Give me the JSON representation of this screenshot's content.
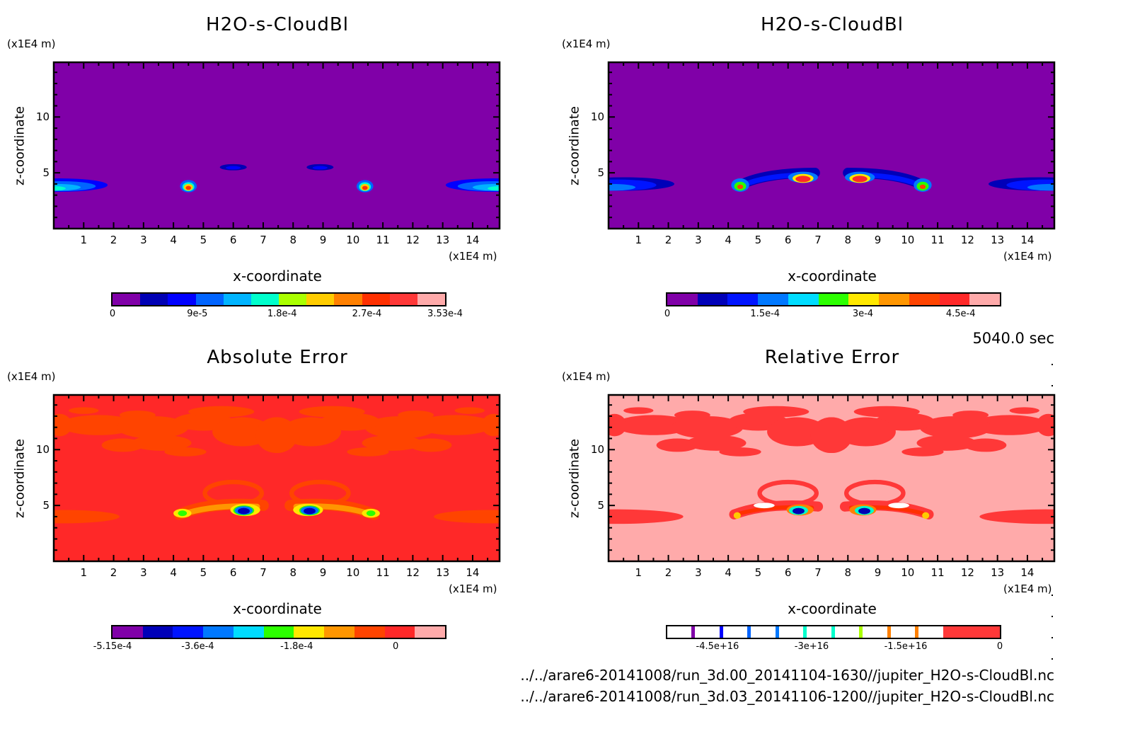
{
  "time_label": "5040.0 sec",
  "file_paths": [
    "../../arare6-20141008/run_3d.00_20141104-1630//jupiter_H2O-s-CloudBl.nc",
    "../../arare6-20141008/run_3d.03_20141106-1200//jupiter_H2O-s-CloudBl.nc"
  ],
  "chart_data": [
    {
      "type": "heatmap",
      "title": "H2O-s-CloudBl",
      "xlabel": "x-coordinate",
      "ylabel": "z-coordinate",
      "x_unit": "(x1E4 m)",
      "z_unit": "(x1E4 m)",
      "xlim": [
        0,
        14.9
      ],
      "zlim": [
        0,
        14.9
      ],
      "xticks": [
        "1",
        "2",
        "3",
        "4",
        "5",
        "6",
        "7",
        "8",
        "9",
        "10",
        "11",
        "12",
        "13",
        "14"
      ],
      "zticks": [
        "5",
        "10"
      ],
      "background": "#8000a8",
      "colorbar": {
        "colors": [
          "#8000a8",
          "#0000b4",
          "#0000ff",
          "#0064ff",
          "#00b4ff",
          "#00ffcc",
          "#aaff00",
          "#ffcc00",
          "#ff8000",
          "#ff3000",
          "#ff3838",
          "#ffaaaa"
        ],
        "tick_labels": [
          "0",
          "9e-5",
          "1.8e-4",
          "2.7e-4",
          "3.53e-4"
        ],
        "tick_values": [
          0,
          9e-05,
          0.00018,
          0.00027,
          0.000353
        ],
        "range": [
          0,
          0.000353
        ]
      },
      "features": [
        {
          "kind": "ellipse",
          "x": 0.2,
          "z": 3.9,
          "rx": 1.6,
          "rz": 0.6,
          "c": "#0000ff",
          "mirror": true
        },
        {
          "kind": "ellipse",
          "x": 0.2,
          "z": 3.8,
          "rx": 1.2,
          "rz": 0.45,
          "c": "#0064ff",
          "mirror": true
        },
        {
          "kind": "ellipse",
          "x": 0.1,
          "z": 3.7,
          "rx": 0.8,
          "rz": 0.3,
          "c": "#00b4ff",
          "mirror": true
        },
        {
          "kind": "ellipse",
          "x": 0.0,
          "z": 3.6,
          "rx": 0.4,
          "rz": 0.2,
          "c": "#00ffcc",
          "mirror": true
        },
        {
          "kind": "ellipse",
          "x": 6.0,
          "z": 5.5,
          "rx": 0.45,
          "rz": 0.28,
          "c": "#0000b4",
          "mirror": true
        },
        {
          "kind": "ellipse",
          "x": 6.0,
          "z": 5.45,
          "rx": 0.25,
          "rz": 0.15,
          "c": "#0000ff",
          "mirror": true
        },
        {
          "kind": "ellipse",
          "x": 4.5,
          "z": 3.8,
          "rx": 0.28,
          "rz": 0.55,
          "c": "#0064ff",
          "mirror": true
        },
        {
          "kind": "ellipse",
          "x": 4.5,
          "z": 3.75,
          "rx": 0.2,
          "rz": 0.4,
          "c": "#00ffcc",
          "mirror": true
        },
        {
          "kind": "ellipse",
          "x": 4.5,
          "z": 3.7,
          "rx": 0.15,
          "rz": 0.3,
          "c": "#ffcc00",
          "mirror": true
        },
        {
          "kind": "ellipse",
          "x": 4.5,
          "z": 3.65,
          "rx": 0.09,
          "rz": 0.18,
          "c": "#ff3000",
          "mirror": true
        }
      ]
    },
    {
      "type": "heatmap",
      "title": "H2O-s-CloudBl",
      "xlabel": "x-coordinate",
      "ylabel": "z-coordinate",
      "x_unit": "(x1E4 m)",
      "z_unit": "(x1E4 m)",
      "xlim": [
        0,
        14.9
      ],
      "zlim": [
        0,
        14.9
      ],
      "xticks": [
        "1",
        "2",
        "3",
        "4",
        "5",
        "6",
        "7",
        "8",
        "9",
        "10",
        "11",
        "12",
        "13",
        "14"
      ],
      "zticks": [
        "5",
        "10"
      ],
      "background": "#8000a8",
      "colorbar": {
        "colors": [
          "#8000a8",
          "#0000b8",
          "#0014ff",
          "#0078ff",
          "#00dcff",
          "#2cff00",
          "#ffe800",
          "#ff9600",
          "#ff4400",
          "#ff2828",
          "#ffaaaa"
        ],
        "tick_labels": [
          "0",
          "1.5e-4",
          "3e-4",
          "4.5e-4"
        ],
        "tick_values": [
          0,
          0.00015,
          0.0003,
          0.00045
        ],
        "range": [
          0,
          0.00051
        ]
      },
      "features": [
        {
          "kind": "ellipse",
          "x": 0.5,
          "z": 4.0,
          "rx": 1.7,
          "rz": 0.6,
          "c": "#0000b8",
          "mirror": true
        },
        {
          "kind": "ellipse",
          "x": 0.3,
          "z": 3.9,
          "rx": 1.3,
          "rz": 0.5,
          "c": "#0014ff",
          "mirror": true
        },
        {
          "kind": "ellipse",
          "x": 0.1,
          "z": 3.7,
          "rx": 0.8,
          "rz": 0.3,
          "c": "#0078ff",
          "mirror": true
        },
        {
          "kind": "arc",
          "pts": [
            [
              4.4,
              3.9
            ],
            [
              5.2,
              5.0
            ],
            [
              6.9,
              5.0
            ]
          ],
          "thick": 0.9,
          "c": "#0000b8",
          "mirror": true
        },
        {
          "kind": "arc",
          "pts": [
            [
              4.5,
              3.9
            ],
            [
              5.3,
              4.8
            ],
            [
              6.6,
              4.8
            ]
          ],
          "thick": 0.45,
          "c": "#0014ff",
          "mirror": true
        },
        {
          "kind": "ellipse",
          "x": 4.4,
          "z": 3.9,
          "rx": 0.3,
          "rz": 0.6,
          "c": "#0078ff",
          "mirror": true
        },
        {
          "kind": "ellipse",
          "x": 4.4,
          "z": 3.8,
          "rx": 0.2,
          "rz": 0.4,
          "c": "#2cff00",
          "mirror": true
        },
        {
          "kind": "ellipse",
          "x": 4.4,
          "z": 3.75,
          "rx": 0.1,
          "rz": 0.2,
          "c": "#ff4400",
          "mirror": true
        },
        {
          "kind": "ellipse",
          "x": 6.5,
          "z": 4.6,
          "rx": 0.5,
          "rz": 0.5,
          "c": "#0078ff",
          "mirror": true
        },
        {
          "kind": "ellipse",
          "x": 6.5,
          "z": 4.5,
          "rx": 0.35,
          "rz": 0.4,
          "c": "#ffe800",
          "mirror": true
        },
        {
          "kind": "ellipse",
          "x": 6.5,
          "z": 4.45,
          "rx": 0.25,
          "rz": 0.28,
          "c": "#ff2828",
          "mirror": true
        }
      ]
    },
    {
      "type": "heatmap",
      "title": "Absolute Error",
      "xlabel": "x-coordinate",
      "ylabel": "z-coordinate",
      "x_unit": "(x1E4 m)",
      "z_unit": "(x1E4 m)",
      "xlim": [
        0,
        14.9
      ],
      "zlim": [
        0,
        14.9
      ],
      "xticks": [
        "1",
        "2",
        "3",
        "4",
        "5",
        "6",
        "7",
        "8",
        "9",
        "10",
        "11",
        "12",
        "13",
        "14"
      ],
      "zticks": [
        "5",
        "10"
      ],
      "background": "#ff2828",
      "colorbar": {
        "colors": [
          "#8000a8",
          "#0000b8",
          "#0014ff",
          "#0078ff",
          "#00dcff",
          "#2cff00",
          "#ffe800",
          "#ff9600",
          "#ff4400",
          "#ff2828",
          "#ffaaaa"
        ],
        "tick_labels": [
          "-5.15e-4",
          "-3.6e-4",
          "-1.8e-4",
          "0"
        ],
        "tick_values": [
          -0.000515,
          -0.00036,
          -0.00018,
          0
        ],
        "range": [
          -0.000515,
          9e-05
        ]
      },
      "features": [
        {
          "kind": "patches",
          "c": "#ff4400",
          "mirror": true
        },
        {
          "kind": "ellipse",
          "x": 0.3,
          "z": 4.0,
          "rx": 1.9,
          "rz": 0.6,
          "c": "#ff4400",
          "mirror": true
        },
        {
          "kind": "loop",
          "x": 6.0,
          "z": 6.1,
          "rx": 0.95,
          "rz": 1.0,
          "thick": 0.4,
          "c": "#ff4400",
          "mirror": true
        },
        {
          "kind": "arc",
          "pts": [
            [
              4.2,
              4.2
            ],
            [
              5.3,
              5.4
            ],
            [
              7.0,
              5.0
            ]
          ],
          "thick": 1.0,
          "c": "#ff4400",
          "mirror": true
        },
        {
          "kind": "arc",
          "pts": [
            [
              4.3,
              4.2
            ],
            [
              5.3,
              5.1
            ],
            [
              6.8,
              4.9
            ]
          ],
          "thick": 0.5,
          "c": "#ff9600",
          "mirror": true
        },
        {
          "kind": "ellipse",
          "x": 4.3,
          "z": 4.3,
          "rx": 0.3,
          "rz": 0.4,
          "c": "#ffe800",
          "mirror": true
        },
        {
          "kind": "ellipse",
          "x": 4.3,
          "z": 4.3,
          "rx": 0.15,
          "rz": 0.25,
          "c": "#2cff00",
          "mirror": true
        },
        {
          "kind": "ellipse",
          "x": 6.4,
          "z": 4.6,
          "rx": 0.5,
          "rz": 0.55,
          "c": "#ffe800",
          "mirror": true
        },
        {
          "kind": "ellipse",
          "x": 6.35,
          "z": 4.55,
          "rx": 0.35,
          "rz": 0.45,
          "c": "#2cff00",
          "mirror": true
        },
        {
          "kind": "ellipse",
          "x": 6.35,
          "z": 4.55,
          "rx": 0.3,
          "rz": 0.38,
          "c": "#0078ff",
          "mirror": true
        },
        {
          "kind": "ellipse",
          "x": 6.35,
          "z": 4.5,
          "rx": 0.2,
          "rz": 0.28,
          "c": "#0000b8",
          "mirror": true
        }
      ]
    },
    {
      "type": "heatmap",
      "title": "Relative Error",
      "xlabel": "x-coordinate",
      "ylabel": "z-coordinate",
      "x_unit": "(x1E4 m)",
      "z_unit": "(x1E4 m)",
      "xlim": [
        0,
        14.9
      ],
      "zlim": [
        0,
        14.9
      ],
      "xticks": [
        "1",
        "2",
        "3",
        "4",
        "5",
        "6",
        "7",
        "8",
        "9",
        "10",
        "11",
        "12",
        "13",
        "14"
      ],
      "zticks": [
        "5",
        "10"
      ],
      "background": "#ffaaaa",
      "colorbar": {
        "colors": [
          "#ffffff",
          "#8000a8",
          "#ffffff",
          "#0000ff",
          "#ffffff",
          "#0064ff",
          "#ffffff",
          "#0078ff",
          "#ffffff",
          "#00ffcc",
          "#ffffff",
          "#00ffcc",
          "#ffffff",
          "#aaff00",
          "#ffffff",
          "#ff8000",
          "#ffffff",
          "#ff8000",
          "#ffffff",
          "#ff3838",
          "#ff3838"
        ],
        "tick_labels": [
          "-4.5e+16",
          "-3e+16",
          "-1.5e+16",
          "0"
        ],
        "tick_values": [
          -4.5e+16,
          -3e+16,
          -1.5e+16,
          0
        ],
        "range": [
          -5.3e+16,
          0
        ]
      },
      "features": [
        {
          "kind": "patches",
          "c": "#ff3838",
          "mirror": true
        },
        {
          "kind": "ellipse",
          "x": 0.3,
          "z": 4.0,
          "rx": 2.2,
          "rz": 0.65,
          "c": "#ff3838",
          "mirror": true
        },
        {
          "kind": "loop",
          "x": 6.0,
          "z": 6.1,
          "rx": 0.95,
          "rz": 1.0,
          "thick": 0.4,
          "c": "#ff3838",
          "mirror": true
        },
        {
          "kind": "arc",
          "pts": [
            [
              4.2,
              4.2
            ],
            [
              5.3,
              5.3
            ],
            [
              7.0,
              4.9
            ]
          ],
          "thick": 0.9,
          "c": "#ff3838",
          "mirror": true
        },
        {
          "kind": "arc",
          "pts": [
            [
              4.4,
              4.3
            ],
            [
              5.4,
              5.0
            ],
            [
              6.8,
              4.8
            ]
          ],
          "thick": 0.35,
          "c": "#ff3000",
          "mirror": true
        },
        {
          "kind": "ellipse",
          "x": 5.2,
          "z": 5.0,
          "rx": 0.35,
          "rz": 0.25,
          "c": "#ffffff",
          "mirror": true
        },
        {
          "kind": "ellipse",
          "x": 4.3,
          "z": 4.1,
          "rx": 0.12,
          "rz": 0.3,
          "c": "#ffcc00",
          "mirror": true
        },
        {
          "kind": "ellipse",
          "x": 6.4,
          "z": 4.6,
          "rx": 0.45,
          "rz": 0.5,
          "c": "#ff8000",
          "mirror": true
        },
        {
          "kind": "ellipse",
          "x": 6.35,
          "z": 4.55,
          "rx": 0.32,
          "rz": 0.4,
          "c": "#00ffcc",
          "mirror": true
        },
        {
          "kind": "ellipse",
          "x": 6.35,
          "z": 4.5,
          "rx": 0.2,
          "rz": 0.28,
          "c": "#0000b4",
          "mirror": true
        }
      ]
    }
  ]
}
